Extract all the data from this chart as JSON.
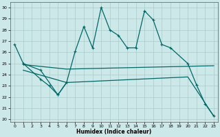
{
  "xlabel": "Humidex (Indice chaleur)",
  "background_color": "#cce8e8",
  "grid_color": "#aacccc",
  "line_color": "#006666",
  "xlim": [
    -0.5,
    23.5
  ],
  "ylim": [
    19.8,
    30.5
  ],
  "yticks": [
    20,
    21,
    22,
    23,
    24,
    25,
    26,
    27,
    28,
    29,
    30
  ],
  "xticks": [
    0,
    1,
    2,
    3,
    4,
    5,
    6,
    7,
    8,
    9,
    10,
    11,
    12,
    13,
    14,
    15,
    16,
    17,
    18,
    19,
    20,
    21,
    22,
    23
  ],
  "line1_x": [
    0,
    1,
    3,
    5,
    6,
    7,
    8,
    9,
    10,
    11,
    12,
    13,
    14,
    15,
    16,
    17,
    18,
    20,
    21,
    22,
    23
  ],
  "line1_y": [
    26.7,
    25.0,
    24.4,
    22.2,
    23.3,
    26.1,
    28.3,
    26.4,
    30.0,
    28.0,
    27.5,
    26.4,
    26.4,
    29.7,
    28.9,
    26.7,
    26.4,
    25.0,
    23.1,
    21.4,
    20.3
  ],
  "line2_x": [
    1,
    3,
    4,
    5,
    6
  ],
  "line2_y": [
    25.0,
    23.6,
    23.0,
    22.2,
    23.3
  ],
  "line3_x": [
    1,
    6,
    23
  ],
  "line3_y": [
    24.9,
    24.5,
    24.8
  ],
  "line4_x": [
    1,
    6,
    20,
    23
  ],
  "line4_y": [
    24.4,
    23.3,
    23.8,
    20.3
  ]
}
